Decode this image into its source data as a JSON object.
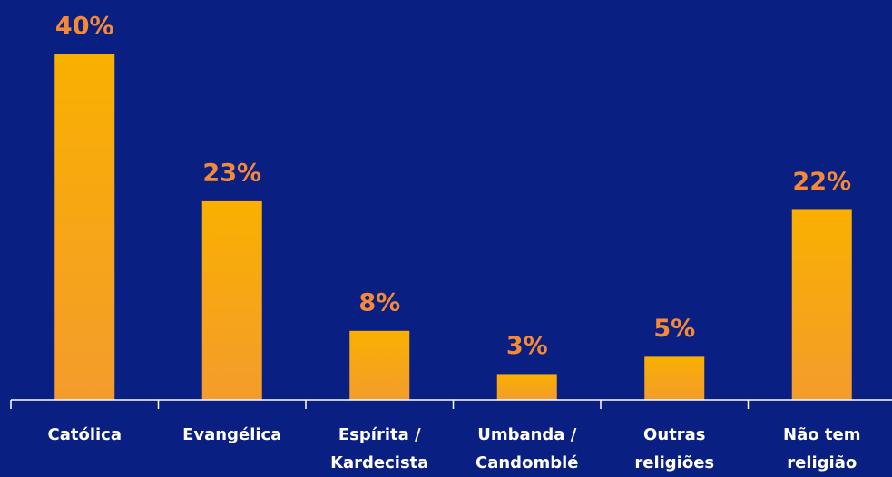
{
  "chart_data": {
    "type": "bar",
    "categories": [
      [
        "Católica"
      ],
      [
        "Evangélica"
      ],
      [
        "Espírita /",
        "Kardecista"
      ],
      [
        "Umbanda /",
        "Candomblé"
      ],
      [
        "Outras",
        "religiões"
      ],
      [
        "Não tem",
        "religião"
      ]
    ],
    "values": [
      40,
      23,
      8,
      3,
      5,
      22
    ],
    "value_labels": [
      "40%",
      "23%",
      "8%",
      "3%",
      "5%",
      "22%"
    ],
    "color": "#f7a90c",
    "ylim": [
      0,
      40
    ]
  }
}
